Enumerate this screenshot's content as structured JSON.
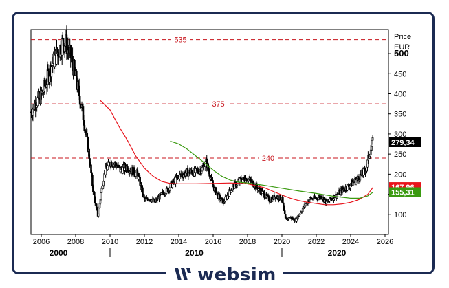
{
  "brand": {
    "name": "websim",
    "color": "#1b2a52",
    "icon": "websim-logo-icon"
  },
  "chart_data": {
    "type": "candlestick",
    "ylabel_line1": "Price",
    "ylabel_line2": "EUR",
    "ylim": [
      50,
      560
    ],
    "xlim": [
      2005.4,
      2026.2
    ],
    "y_ticks": [
      100,
      150,
      200,
      250,
      300,
      350,
      400,
      450,
      500
    ],
    "y_tick_bold": [
      500
    ],
    "x_ticks": [
      2006,
      2008,
      2010,
      2012,
      2014,
      2016,
      2018,
      2020,
      2022,
      2024,
      2026
    ],
    "decades": [
      {
        "label": "2000",
        "x": 2007.0
      },
      {
        "label": "2010",
        "x": 2014.9
      },
      {
        "label": "2020",
        "x": 2023.2
      }
    ],
    "decade_separators": [
      2010.0,
      2020.0
    ],
    "horizontal_levels": [
      {
        "value": 535,
        "label": "535"
      },
      {
        "value": 375,
        "label": "375"
      },
      {
        "value": 240,
        "label": "240"
      }
    ],
    "last_price": {
      "value": 279.34,
      "label": "279,34",
      "color": "#000000"
    },
    "moving_averages": [
      {
        "color": "#e8141c",
        "last": 167.96,
        "label": "167,96",
        "points": [
          [
            2009.4,
            385
          ],
          [
            2010.0,
            360
          ],
          [
            2010.5,
            320
          ],
          [
            2011.0,
            285
          ],
          [
            2011.5,
            245
          ],
          [
            2012.0,
            215
          ],
          [
            2012.5,
            195
          ],
          [
            2013.0,
            182
          ],
          [
            2013.5,
            177
          ],
          [
            2014.0,
            176
          ],
          [
            2015.0,
            176
          ],
          [
            2016.0,
            177
          ],
          [
            2017.0,
            178
          ],
          [
            2018.0,
            176
          ],
          [
            2019.0,
            166
          ],
          [
            2019.5,
            157
          ],
          [
            2020.0,
            148
          ],
          [
            2020.5,
            140
          ],
          [
            2021.0,
            134
          ],
          [
            2021.5,
            130
          ],
          [
            2022.0,
            127
          ],
          [
            2022.5,
            124
          ],
          [
            2023.0,
            124
          ],
          [
            2023.5,
            126
          ],
          [
            2024.0,
            130
          ],
          [
            2024.5,
            137
          ],
          [
            2025.0,
            150
          ],
          [
            2025.3,
            167
          ]
        ]
      },
      {
        "color": "#3a9a10",
        "last": 155.31,
        "label": "155,31",
        "points": [
          [
            2013.5,
            282
          ],
          [
            2014.0,
            275
          ],
          [
            2014.5,
            262
          ],
          [
            2015.0,
            245
          ],
          [
            2015.5,
            228
          ],
          [
            2016.0,
            210
          ],
          [
            2016.5,
            195
          ],
          [
            2017.0,
            185
          ],
          [
            2017.5,
            180
          ],
          [
            2018.0,
            178
          ],
          [
            2019.0,
            172
          ],
          [
            2020.0,
            165
          ],
          [
            2021.0,
            158
          ],
          [
            2022.0,
            152
          ],
          [
            2023.0,
            145
          ],
          [
            2024.0,
            140
          ],
          [
            2024.5,
            140
          ],
          [
            2025.0,
            146
          ],
          [
            2025.3,
            155
          ]
        ]
      }
    ],
    "price_path": [
      [
        2005.4,
        355
      ],
      [
        2005.7,
        380
      ],
      [
        2006.0,
        395
      ],
      [
        2006.3,
        430
      ],
      [
        2006.5,
        460
      ],
      [
        2006.8,
        490
      ],
      [
        2007.0,
        505
      ],
      [
        2007.2,
        525
      ],
      [
        2007.4,
        530
      ],
      [
        2007.6,
        505
      ],
      [
        2007.8,
        480
      ],
      [
        2008.0,
        440
      ],
      [
        2008.2,
        400
      ],
      [
        2008.4,
        355
      ],
      [
        2008.6,
        300
      ],
      [
        2008.8,
        240
      ],
      [
        2009.0,
        165
      ],
      [
        2009.2,
        115
      ],
      [
        2009.3,
        95
      ],
      [
        2009.5,
        160
      ],
      [
        2009.7,
        205
      ],
      [
        2010.0,
        230
      ],
      [
        2010.3,
        225
      ],
      [
        2010.6,
        210
      ],
      [
        2011.0,
        218
      ],
      [
        2011.3,
        208
      ],
      [
        2011.6,
        200
      ],
      [
        2011.8,
        170
      ],
      [
        2012.0,
        135
      ],
      [
        2012.3,
        140
      ],
      [
        2012.6,
        130
      ],
      [
        2013.0,
        150
      ],
      [
        2013.3,
        160
      ],
      [
        2013.6,
        175
      ],
      [
        2014.0,
        195
      ],
      [
        2014.5,
        205
      ],
      [
        2015.0,
        205
      ],
      [
        2015.4,
        215
      ],
      [
        2015.6,
        230
      ],
      [
        2015.8,
        200
      ],
      [
        2016.0,
        170
      ],
      [
        2016.3,
        145
      ],
      [
        2016.6,
        130
      ],
      [
        2017.0,
        160
      ],
      [
        2017.3,
        175
      ],
      [
        2017.6,
        185
      ],
      [
        2018.0,
        190
      ],
      [
        2018.3,
        178
      ],
      [
        2018.6,
        165
      ],
      [
        2019.0,
        148
      ],
      [
        2019.3,
        135
      ],
      [
        2019.6,
        145
      ],
      [
        2020.0,
        140
      ],
      [
        2020.2,
        88
      ],
      [
        2020.5,
        92
      ],
      [
        2020.8,
        85
      ],
      [
        2021.0,
        100
      ],
      [
        2021.3,
        120
      ],
      [
        2021.6,
        138
      ],
      [
        2022.0,
        140
      ],
      [
        2022.3,
        145
      ],
      [
        2022.6,
        128
      ],
      [
        2022.9,
        140
      ],
      [
        2023.2,
        148
      ],
      [
        2023.5,
        160
      ],
      [
        2023.8,
        168
      ],
      [
        2024.0,
        175
      ],
      [
        2024.3,
        185
      ],
      [
        2024.6,
        198
      ],
      [
        2024.9,
        212
      ],
      [
        2025.1,
        255
      ],
      [
        2025.3,
        279
      ]
    ]
  }
}
